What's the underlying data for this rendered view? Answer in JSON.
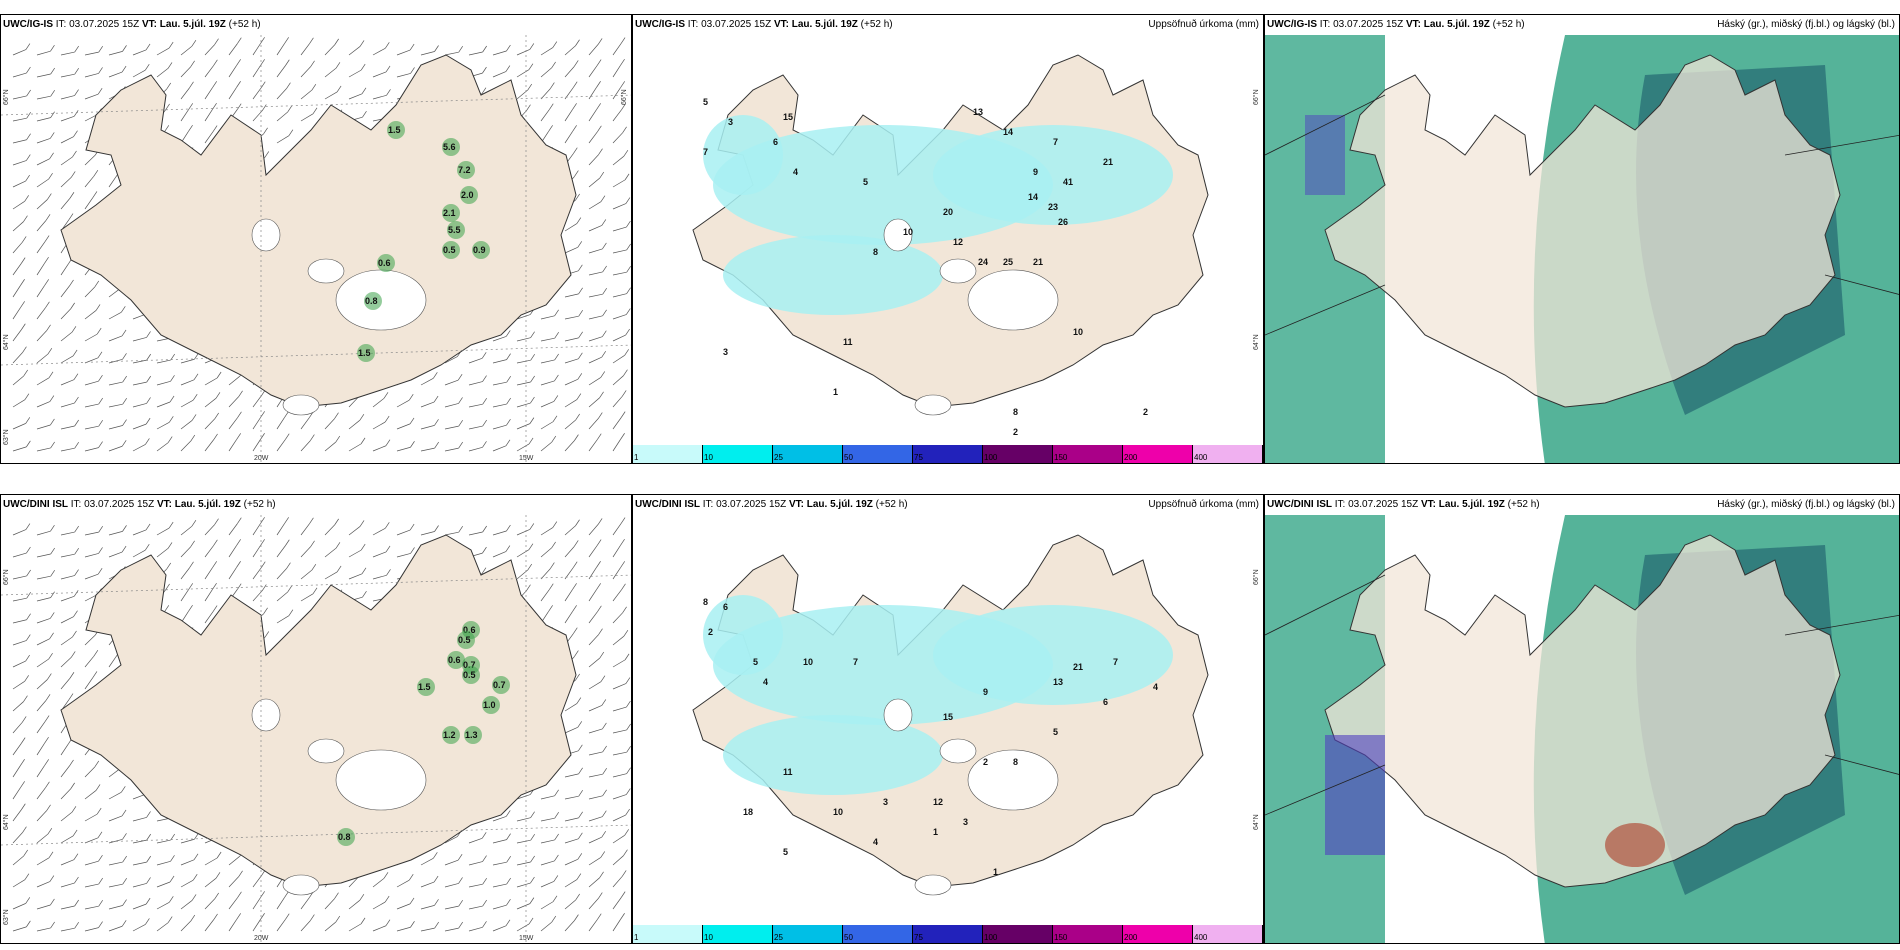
{
  "panels": {
    "top_left": {
      "model": "UWC/IG-IS",
      "it_label": "IT:",
      "it_value": "03.07.2025 15Z",
      "vt_label": "VT:",
      "vt_value": "Lau. 5.júl. 19Z",
      "lead": "(+52 h)",
      "lat_labels": [
        "66°N",
        "64°N",
        "63°N"
      ],
      "lon_labels": [
        "20W",
        "15W"
      ],
      "values": [
        "1.5",
        "5.6",
        "7.2",
        "2.0",
        "2.1",
        "5.5",
        "0.5",
        "0.9",
        "0.6",
        "0.8",
        "1.5"
      ]
    },
    "top_mid": {
      "model": "UWC/IG-IS",
      "it_label": "IT:",
      "it_value": "03.07.2025 15Z",
      "vt_label": "VT:",
      "vt_value": "Lau. 5.júl. 19Z",
      "lead": "(+52 h)",
      "right_title": "Uppsöfnuð úrkoma (mm)",
      "lat_labels": [
        "66°N",
        "64°N"
      ],
      "values": [
        "5",
        "3",
        "15",
        "6",
        "7",
        "4",
        "5",
        "13",
        "14",
        "7",
        "21",
        "9",
        "41",
        "20",
        "14",
        "23",
        "26",
        "10",
        "8",
        "12",
        "24",
        "25",
        "21",
        "11",
        "10",
        "8",
        "2",
        "1",
        "3",
        "2"
      ]
    },
    "top_right": {
      "model": "UWC/IG-IS",
      "it_label": "IT:",
      "it_value": "03.07.2025 15Z",
      "vt_label": "VT:",
      "vt_value": "Lau. 5.júl. 19Z",
      "lead": "(+52 h)",
      "right_title": "Háský (gr.), miðský (fj.bl.) og lágský (bl.)"
    },
    "bot_left": {
      "model": "UWC/DINI ISL",
      "it_label": "IT:",
      "it_value": "03.07.2025 15Z",
      "vt_label": "VT:",
      "vt_value": "Lau. 5.júl. 19Z",
      "lead": "(+52 h)",
      "lat_labels": [
        "66°N",
        "64°N",
        "63°N"
      ],
      "lon_labels": [
        "20W",
        "15W"
      ],
      "values": [
        "0.6",
        "0.5",
        "0.6",
        "0.7",
        "0.5",
        "1.5",
        "0.7",
        "1.0",
        "1.2",
        "1.3",
        "0.8"
      ]
    },
    "bot_mid": {
      "model": "UWC/DINI ISL",
      "it_label": "IT:",
      "it_value": "03.07.2025 15Z",
      "vt_label": "VT:",
      "vt_value": "Lau. 5.júl. 19Z",
      "lead": "(+52 h)",
      "right_title": "Uppsöfnuð úrkoma (mm)",
      "lat_labels": [
        "66°N",
        "64°N"
      ],
      "values": [
        "8",
        "6",
        "2",
        "5",
        "4",
        "10",
        "7",
        "15",
        "9",
        "13",
        "21",
        "7",
        "4",
        "6",
        "5",
        "8",
        "12",
        "3",
        "10",
        "11",
        "18",
        "5",
        "4",
        "3",
        "2",
        "1",
        "1"
      ]
    },
    "bot_right": {
      "model": "UWC/DINI ISL",
      "it_label": "IT:",
      "it_value": "03.07.2025 15Z",
      "vt_label": "VT:",
      "vt_value": "Lau. 5.júl. 19Z",
      "lead": "(+52 h)",
      "right_title": "Háský (gr.), miðský (fj.bl.) og lágský (bl.)"
    }
  },
  "colorbar": {
    "labels": [
      "1",
      "10",
      "25",
      "50",
      "75",
      "100",
      "150",
      "200",
      "400"
    ],
    "colors": [
      "#c8fafa",
      "#00eeee",
      "#00bfe6",
      "#3366e6",
      "#2222bb",
      "#660066",
      "#aa0088",
      "#ee00aa",
      "#f0b0f0"
    ]
  },
  "colors": {
    "land": "#f2e6d8",
    "precip_light": "#a8f0f2",
    "cloud_green": "#2aa080",
    "cloud_dark": "#1a5a6a"
  }
}
